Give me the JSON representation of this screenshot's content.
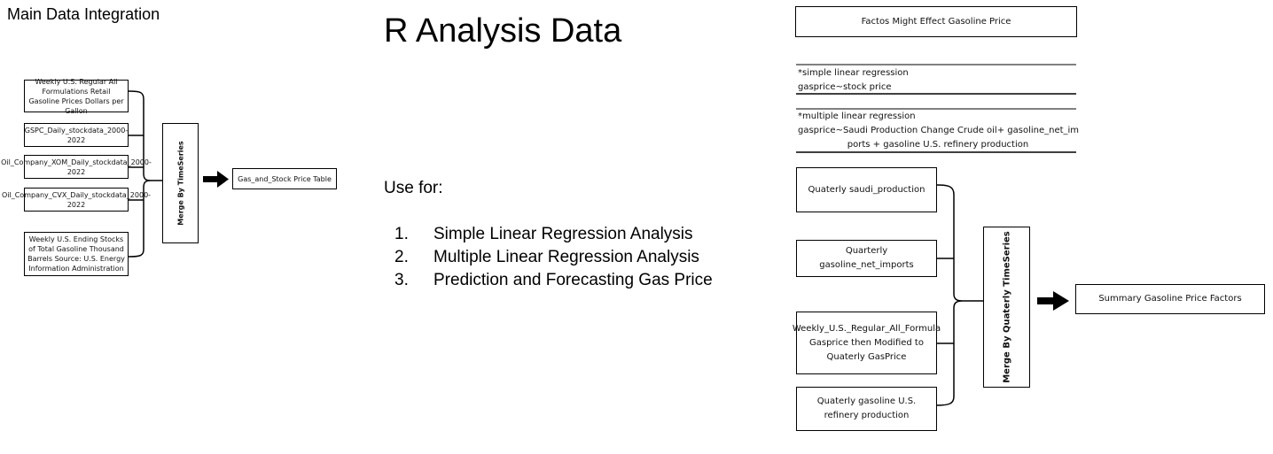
{
  "left": {
    "title": "Main Data Integration",
    "sources": [
      "Weekly U.S. Regular All Formulations Retail Gasoline Prices Dollars per Gallon",
      "GSPC_Daily_stockdata_2000-2022",
      "Oil_Company_XOM_Daily_stockdata_2000-2022",
      "Oil_Company_CVX_Daily_stockdata_2000-2022",
      "Weekly U.S. Ending Stocks of Total Gasoline Thousand Barrels Source: U.S. Energy Information Administration"
    ],
    "merge_label": "Merge By TimeSeries",
    "output": "Gas_and_Stock Price Table"
  },
  "center": {
    "title": "R Analysis Data",
    "use_for": "Use for:",
    "uses": [
      {
        "num": "1.",
        "text": "Simple Linear Regression Analysis"
      },
      {
        "num": "2.",
        "text": "Multiple Linear Regression Analysis"
      },
      {
        "num": "3.",
        "text": "Prediction and Forecasting Gas Price"
      }
    ]
  },
  "right": {
    "header": "Factos Might Effect Gasoline Price",
    "simple": {
      "line1": "*simple linear regression",
      "line2": "gasprice~stock price"
    },
    "multiple": {
      "line1": "*multiple linear regression",
      "line2": "gasprice~Saudi Production Change Crude oil+ gasoline_net_im",
      "line3": "ports + gasoline U.S. refinery production"
    },
    "sources": [
      "Quaterly saudi_production",
      "Quarterly gasoline_net_imports",
      "Weekly_U.S._Regular_All_Formula Gasprice then Modified to Quaterly GasPrice",
      "Quaterly gasoline U.S. refinery production"
    ],
    "merge_label": "Merge By Quaterly TimeSeries",
    "output": "Summary Gasoline Price Factors"
  }
}
